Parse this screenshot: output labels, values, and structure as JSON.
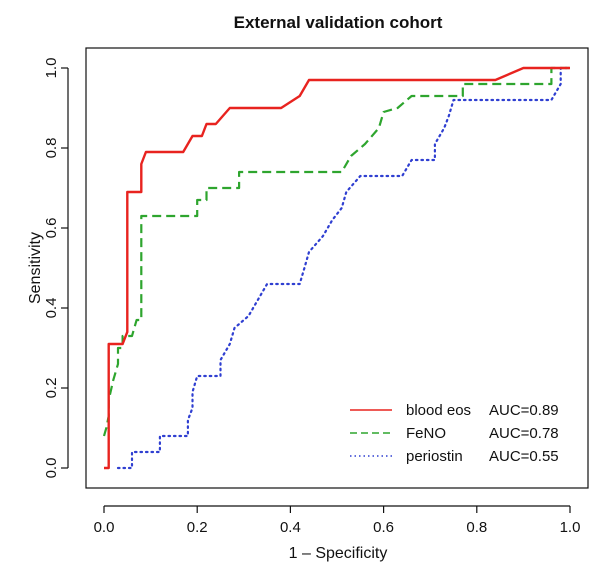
{
  "chart_data": {
    "type": "line",
    "title": "External validation cohort",
    "xlabel": "1 – Specificity",
    "ylabel": "Sensitivity",
    "xlim": [
      0,
      1
    ],
    "ylim": [
      0,
      1
    ],
    "xticks": [
      "0.0",
      "0.2",
      "0.4",
      "0.6",
      "0.8",
      "1.0"
    ],
    "yticks": [
      "0.0",
      "0.2",
      "0.4",
      "0.6",
      "0.8",
      "1.0"
    ],
    "grid": false,
    "legend_position": "bottom-right",
    "series": [
      {
        "name": "blood eos",
        "auc_label": "AUC=0.89",
        "color": "#e8231f",
        "style": "solid",
        "points": [
          [
            0,
            0
          ],
          [
            0.01,
            0
          ],
          [
            0.01,
            0.31
          ],
          [
            0.04,
            0.31
          ],
          [
            0.05,
            0.34
          ],
          [
            0.05,
            0.69
          ],
          [
            0.08,
            0.69
          ],
          [
            0.08,
            0.76
          ],
          [
            0.09,
            0.79
          ],
          [
            0.17,
            0.79
          ],
          [
            0.19,
            0.83
          ],
          [
            0.21,
            0.83
          ],
          [
            0.22,
            0.86
          ],
          [
            0.24,
            0.86
          ],
          [
            0.27,
            0.9
          ],
          [
            0.38,
            0.9
          ],
          [
            0.42,
            0.93
          ],
          [
            0.44,
            0.97
          ],
          [
            0.84,
            0.97
          ],
          [
            0.9,
            1.0
          ],
          [
            1.0,
            1.0
          ]
        ]
      },
      {
        "name": "FeNO",
        "auc_label": "AUC=0.78",
        "color": "#2ea52e",
        "style": "dashed",
        "points": [
          [
            0,
            0.08
          ],
          [
            0.005,
            0.1
          ],
          [
            0.01,
            0.13
          ],
          [
            0.01,
            0.17
          ],
          [
            0.02,
            0.22
          ],
          [
            0.03,
            0.26
          ],
          [
            0.03,
            0.3
          ],
          [
            0.04,
            0.3
          ],
          [
            0.04,
            0.33
          ],
          [
            0.06,
            0.33
          ],
          [
            0.07,
            0.37
          ],
          [
            0.08,
            0.37
          ],
          [
            0.08,
            0.63
          ],
          [
            0.2,
            0.63
          ],
          [
            0.2,
            0.67
          ],
          [
            0.22,
            0.67
          ],
          [
            0.22,
            0.7
          ],
          [
            0.29,
            0.7
          ],
          [
            0.29,
            0.74
          ],
          [
            0.51,
            0.74
          ],
          [
            0.53,
            0.78
          ],
          [
            0.56,
            0.81
          ],
          [
            0.59,
            0.85
          ],
          [
            0.6,
            0.89
          ],
          [
            0.63,
            0.9
          ],
          [
            0.66,
            0.93
          ],
          [
            0.77,
            0.93
          ],
          [
            0.77,
            0.96
          ],
          [
            0.96,
            0.96
          ],
          [
            0.96,
            1.0
          ],
          [
            1.0,
            1.0
          ]
        ]
      },
      {
        "name": "periostin",
        "auc_label": "AUC=0.55",
        "color": "#2f3fd1",
        "style": "dotted",
        "points": [
          [
            0.03,
            0
          ],
          [
            0.06,
            0
          ],
          [
            0.06,
            0.04
          ],
          [
            0.12,
            0.04
          ],
          [
            0.12,
            0.08
          ],
          [
            0.18,
            0.08
          ],
          [
            0.18,
            0.12
          ],
          [
            0.19,
            0.15
          ],
          [
            0.19,
            0.19
          ],
          [
            0.2,
            0.23
          ],
          [
            0.25,
            0.23
          ],
          [
            0.25,
            0.27
          ],
          [
            0.27,
            0.31
          ],
          [
            0.28,
            0.35
          ],
          [
            0.31,
            0.38
          ],
          [
            0.33,
            0.42
          ],
          [
            0.35,
            0.46
          ],
          [
            0.42,
            0.46
          ],
          [
            0.43,
            0.5
          ],
          [
            0.44,
            0.54
          ],
          [
            0.47,
            0.58
          ],
          [
            0.49,
            0.62
          ],
          [
            0.51,
            0.65
          ],
          [
            0.52,
            0.69
          ],
          [
            0.55,
            0.73
          ],
          [
            0.64,
            0.73
          ],
          [
            0.66,
            0.77
          ],
          [
            0.71,
            0.77
          ],
          [
            0.71,
            0.81
          ],
          [
            0.73,
            0.85
          ],
          [
            0.74,
            0.88
          ],
          [
            0.75,
            0.92
          ],
          [
            0.96,
            0.92
          ],
          [
            0.98,
            0.96
          ],
          [
            0.98,
            1.0
          ],
          [
            1.0,
            1.0
          ]
        ]
      }
    ]
  }
}
